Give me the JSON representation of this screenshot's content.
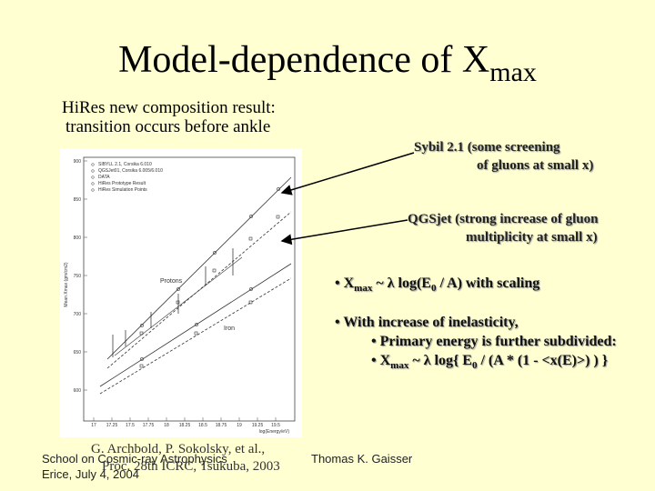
{
  "title": {
    "main": "Model-dependence of X",
    "sub": "max"
  },
  "caption": [
    "HiRes new composition result:",
    "transition occurs before ankle"
  ],
  "plot": {
    "legend": [
      "SIBYLL 2.1, Corsika 6.010",
      "QGSJet01, Corsika 6.005/6.010",
      "DATA",
      "HiRes Prototype Result",
      "HiRes Simulation Points"
    ],
    "y_label": "Mean Xmax (gm/cm2)",
    "x_label": "log(Energy/eV)",
    "y_ticks": [
      "900",
      "850",
      "800",
      "750",
      "700",
      "650",
      "600"
    ],
    "x_ticks": [
      "17",
      "17.25",
      "17.5",
      "17.75",
      "18",
      "18.25",
      "18.5",
      "18.75",
      "19",
      "19.25",
      "19.5"
    ],
    "curve_labels": [
      "Protons",
      "Iron"
    ]
  },
  "notes": [
    {
      "line1": "Sybil 2.1  (some screening",
      "line2": "of gluons at small x)"
    },
    {
      "line1": "QGSjet  (strong increase of gluon",
      "line2": "multiplicity at small x)"
    }
  ],
  "bullets": [
    [
      "• X",
      "max",
      " ~ λ log(E",
      "0",
      " / A) with scaling"
    ],
    [
      "• With increase of inelasticity,"
    ],
    [
      "• Primary energy is further subdivided:"
    ],
    [
      "• X",
      "max",
      " ~ λ log{ E",
      "0",
      " / (A * (1 - <x(E)>) ) }"
    ]
  ],
  "reference": [
    "G. Archbold, P. Sokolsky, et al.,",
    "Proc. 28th ICRC, Tsukuba, 2003"
  ],
  "footer": {
    "school": "School on Cosmic-ray Astrophysics",
    "date": "Erice, July 4, 2004",
    "author": "Thomas K. Gaisser"
  }
}
